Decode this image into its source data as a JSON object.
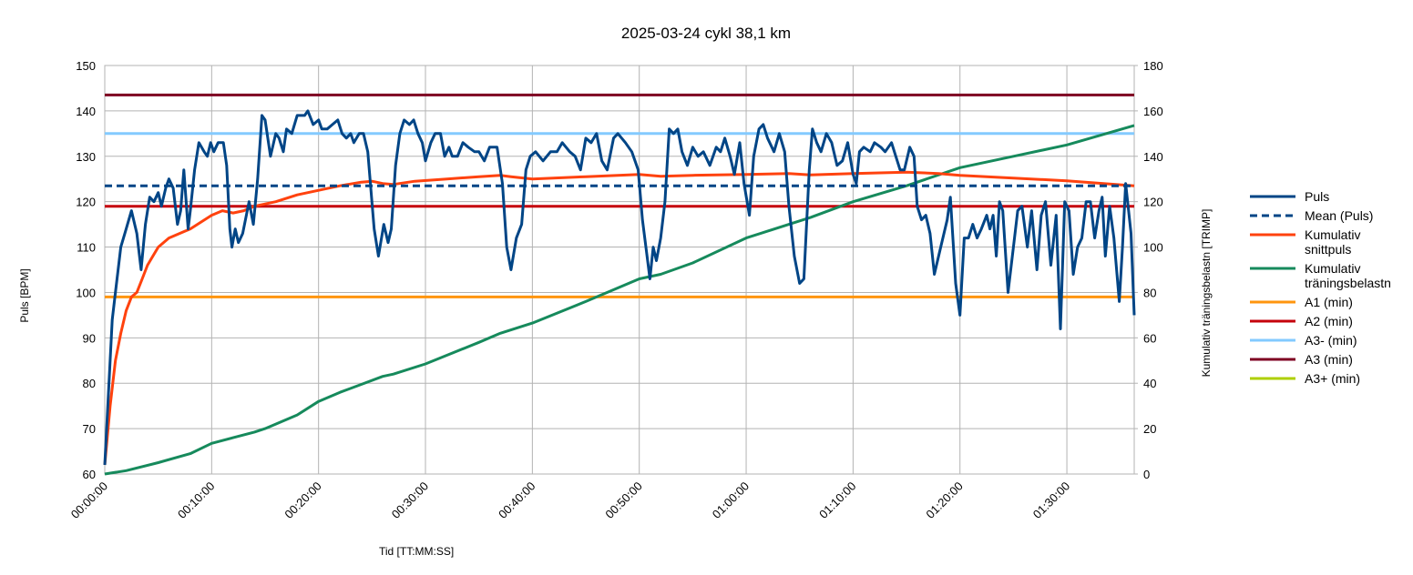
{
  "chart_data": {
    "type": "line",
    "title": "2025-03-24 cykl 38,1 km",
    "x_label": "Tid [TT:MM:SS]",
    "y_label": "Puls [BPM]",
    "y2_label": "Kumulativ träningsbelastn [TRIMP]",
    "xlim": [
      0,
      96.3
    ],
    "xticks": [
      {
        "value": 0,
        "label": "00:00:00"
      },
      {
        "value": 10,
        "label": "00:10:00"
      },
      {
        "value": 20,
        "label": "00:20:00"
      },
      {
        "value": 30,
        "label": "00:30:00"
      },
      {
        "value": 40,
        "label": "00:40:00"
      },
      {
        "value": 50,
        "label": "00:50:00"
      },
      {
        "value": 60,
        "label": "01:00:00"
      },
      {
        "value": 70,
        "label": "01:10:00"
      },
      {
        "value": 80,
        "label": "01:20:00"
      },
      {
        "value": 90,
        "label": "01:30:00"
      }
    ],
    "ylim": [
      60,
      150
    ],
    "yticks": [
      60,
      70,
      80,
      90,
      100,
      110,
      120,
      130,
      140,
      150
    ],
    "y2lim": [
      0,
      180
    ],
    "y2ticks": [
      0,
      20,
      40,
      60,
      80,
      100,
      120,
      140,
      160,
      180
    ],
    "grid": true,
    "legend": "right",
    "series": [
      {
        "name": "Puls",
        "color": "#004586",
        "x": [
          0,
          0.7,
          1,
          1.5,
          2,
          2.5,
          3,
          3.4,
          3.8,
          4.2,
          4.6,
          5,
          5.3,
          5.7,
          6,
          6.4,
          6.8,
          7.1,
          7.4,
          7.8,
          8,
          8.4,
          8.8,
          9.3,
          9.6,
          9.9,
          10.2,
          10.6,
          11.1,
          11.4,
          11.7,
          11.9,
          12.2,
          12.5,
          12.9,
          13.5,
          13.9,
          14.3,
          14.7,
          15,
          15.5,
          16,
          16.3,
          16.7,
          17,
          17.5,
          18,
          18.7,
          19,
          19.5,
          20,
          20.3,
          20.8,
          21.3,
          21.8,
          22.2,
          22.6,
          23,
          23.3,
          23.8,
          24.2,
          24.6,
          25.2,
          25.6,
          26.1,
          26.5,
          26.8,
          27.2,
          27.6,
          28,
          28.5,
          28.9,
          29.3,
          29.7,
          30,
          30.5,
          30.9,
          31.4,
          31.8,
          32.2,
          32.5,
          33,
          33.5,
          34,
          34.6,
          35,
          35.5,
          36,
          36.7,
          37.2,
          37.6,
          38,
          38.5,
          39,
          39.4,
          39.8,
          40.3,
          41,
          41.7,
          42.3,
          42.8,
          43.5,
          44,
          44.5,
          45,
          45.5,
          46,
          46.5,
          47,
          47.6,
          48,
          48.7,
          49.3,
          49.9,
          50.3,
          51,
          51.3,
          51.6,
          52,
          52.4,
          52.8,
          53.2,
          53.6,
          54,
          54.5,
          55,
          55.5,
          56,
          56.6,
          57.2,
          57.6,
          58,
          58.5,
          58.9,
          59.4,
          59.8,
          60.3,
          60.7,
          61.2,
          61.6,
          62,
          62.6,
          63.1,
          63.6,
          64,
          64.5,
          65,
          65.4,
          65.9,
          66.2,
          66.6,
          67,
          67.5,
          68,
          68.5,
          69,
          69.5,
          70,
          70.3,
          70.6,
          71,
          71.6,
          72,
          72.6,
          73,
          73.6,
          74,
          74.4,
          74.8,
          75.3,
          75.7,
          76,
          76.4,
          76.8,
          77.2,
          77.6,
          78.2,
          78.8,
          79.1,
          79.6,
          80,
          80.4,
          80.8,
          81.2,
          81.6,
          82,
          82.5,
          82.8,
          83.1,
          83.4,
          83.7,
          84,
          84.5,
          85,
          85.4,
          85.8,
          86.3,
          86.7,
          87.2,
          87.6,
          88,
          88.5,
          89,
          89.4,
          89.8,
          90.2,
          90.6,
          91,
          91.4,
          91.8,
          92.2,
          92.6,
          93,
          93.3,
          93.6,
          94,
          94.4,
          94.9,
          95.2,
          95.5,
          96,
          96.3
        ],
        "values": [
          62,
          94,
          100,
          110,
          114,
          118,
          113,
          105,
          115,
          121,
          120,
          122,
          119,
          123,
          125,
          123,
          115,
          118,
          127,
          114,
          118,
          127,
          133,
          131,
          130,
          133,
          131,
          133,
          133,
          128,
          114,
          110,
          114,
          111,
          113,
          120,
          115,
          125,
          139,
          138,
          130,
          135,
          134,
          131,
          136,
          135,
          139,
          139,
          140,
          137,
          138,
          136,
          136,
          137,
          138,
          135,
          134,
          135,
          133,
          135,
          135,
          131,
          114,
          108,
          115,
          111,
          114,
          128,
          135,
          138,
          137,
          138,
          135,
          133,
          129,
          133,
          135,
          135,
          130,
          132,
          130,
          130,
          133,
          132,
          131,
          131,
          129,
          132,
          132,
          124,
          110,
          105,
          112,
          115,
          127,
          130,
          131,
          129,
          131,
          131,
          133,
          131,
          130,
          127,
          134,
          133,
          135,
          129,
          127,
          134,
          135,
          133,
          131,
          127,
          116,
          103,
          110,
          107,
          112,
          120,
          136,
          135,
          136,
          131,
          128,
          132,
          130,
          131,
          128,
          132,
          131,
          134,
          130,
          126,
          133,
          124,
          117,
          130,
          136,
          137,
          134,
          131,
          135,
          131,
          119,
          108,
          102,
          103,
          127,
          136,
          133,
          131,
          135,
          133,
          128,
          129,
          133,
          126,
          124,
          131,
          132,
          131,
          133,
          132,
          131,
          133,
          130,
          127,
          127,
          132,
          130,
          119,
          116,
          117,
          113,
          104,
          110,
          116,
          121,
          102,
          95,
          112,
          112,
          115,
          112,
          114,
          117,
          114,
          117,
          108,
          120,
          118,
          100,
          110,
          118,
          119,
          110,
          118,
          105,
          117,
          120,
          106,
          117,
          92,
          120,
          118,
          104,
          110,
          112,
          120,
          120,
          112,
          118,
          121,
          108,
          119,
          112,
          98,
          110,
          124,
          113,
          95
        ]
      },
      {
        "name": "Mean (Puls)",
        "color": "#004586",
        "style": "dashed",
        "x": [
          0,
          96.3
        ],
        "values": [
          123.5,
          123.5
        ]
      },
      {
        "name": "Kumulativ snittpuls",
        "color": "#ff420e",
        "x": [
          0,
          0.5,
          1,
          1.5,
          2,
          2.5,
          3,
          3.5,
          4,
          4.5,
          5,
          6,
          7,
          8,
          9,
          10,
          11,
          12,
          13,
          14,
          16,
          18,
          20,
          22,
          24,
          25,
          26,
          27,
          29,
          32,
          35,
          37,
          38,
          40,
          45,
          50,
          52,
          55,
          60,
          64,
          66,
          70,
          75,
          78,
          80,
          85,
          90,
          96.3
        ],
        "values": [
          62,
          75,
          85,
          91,
          96,
          99,
          100,
          103,
          106,
          108,
          110,
          112,
          113,
          114,
          115.5,
          117,
          118,
          117.5,
          118,
          119,
          120,
          121.5,
          122.5,
          123.5,
          124.3,
          124.5,
          124,
          123.8,
          124.5,
          125,
          125.5,
          125.8,
          125.5,
          125,
          125.5,
          126,
          125.6,
          125.8,
          126,
          126.2,
          125.9,
          126.2,
          126.5,
          126.2,
          125.8,
          125.2,
          124.6,
          123.5
        ]
      },
      {
        "name": "Kumulativ träningsbelastn",
        "color": "#168a5c",
        "axis": "y2",
        "x": [
          0,
          2,
          5,
          8,
          10,
          12,
          14,
          15,
          18,
          20,
          22,
          24,
          26,
          27,
          30,
          35,
          37,
          40,
          45,
          50,
          52,
          55,
          60,
          62,
          64,
          66,
          70,
          75,
          80,
          85,
          90,
          96.3
        ],
        "values": [
          0,
          1.5,
          5,
          9,
          13.5,
          16,
          18.5,
          20,
          26,
          32,
          36,
          39.5,
          43,
          44,
          48.5,
          58,
          62,
          66.5,
          76,
          86,
          88,
          93,
          104,
          107,
          110,
          113,
          120,
          127,
          135,
          140,
          145,
          153.6
        ]
      },
      {
        "name": "A1 (min)",
        "color": "#ff950e",
        "x": [
          0,
          96.3
        ],
        "values": [
          99,
          99
        ]
      },
      {
        "name": "A2 (min)",
        "color": "#c5000b",
        "x": [
          0,
          96.3
        ],
        "values": [
          119,
          119
        ]
      },
      {
        "name": "A3- (min)",
        "color": "#83caff",
        "x": [
          0,
          96.3
        ],
        "values": [
          135,
          135
        ]
      },
      {
        "name": "A3 (min)",
        "color": "#7e0021",
        "x": [
          0,
          96.3
        ],
        "values": [
          143.5,
          143.5
        ]
      },
      {
        "name": "A3+ (min)",
        "color": "#aecf00",
        "x": [],
        "values": []
      }
    ]
  }
}
